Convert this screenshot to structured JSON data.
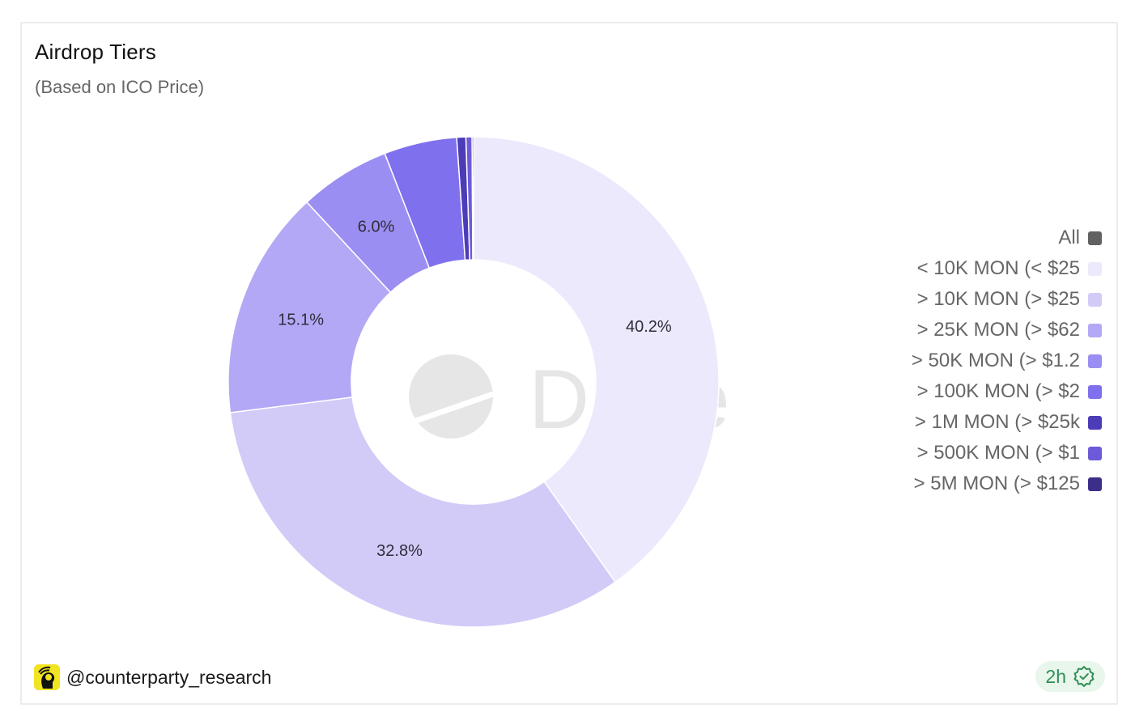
{
  "card": {
    "title": "Airdrop Tiers",
    "subtitle": "(Based on ICO Price)"
  },
  "chart_data": {
    "type": "pie",
    "donut": true,
    "categories": [
      "< 10K MON (< $25",
      "> 10K MON (> $25",
      "> 25K MON (> $62",
      "> 50K MON (> $1.2",
      "> 100K MON (> $2",
      "> 1M MON (> $25k",
      "> 500K MON (> $1",
      "> 5M MON (> $125"
    ],
    "values": [
      40.2,
      32.8,
      15.1,
      6.0,
      4.8,
      0.6,
      0.4,
      0.1
    ],
    "data_labels": [
      "40.2%",
      "32.8%",
      "15.1%",
      "6.0%",
      "",
      "",
      "",
      ""
    ],
    "colors": [
      "#ede9fc",
      "#d2cbf8",
      "#b3a8f6",
      "#9b8ef2",
      "#7f70ee",
      "#4d3cb8",
      "#6c5ad8",
      "#3c2f8a"
    ],
    "legend_placement": "right"
  },
  "watermark": {
    "text": "Dune"
  },
  "legend": {
    "items": [
      {
        "label": "All",
        "color": "#616161"
      },
      {
        "label": "< 10K MON (< $25",
        "color": "#ede9fc"
      },
      {
        "label": "> 10K MON (> $25",
        "color": "#d2cbf8"
      },
      {
        "label": "> 25K MON (> $62",
        "color": "#b3a8f6"
      },
      {
        "label": "> 50K MON (> $1.2",
        "color": "#9b8ef2"
      },
      {
        "label": "> 100K MON (> $2",
        "color": "#7f70ee"
      },
      {
        "label": "> 1M MON (> $25k",
        "color": "#4d3cb8"
      },
      {
        "label": "> 500K MON (> $1",
        "color": "#6c5ad8"
      },
      {
        "label": "> 5M MON (> $125",
        "color": "#3c2f8a"
      }
    ]
  },
  "footer": {
    "username": "@counterparty_research",
    "avatar_icon": "reader-avatar-icon",
    "freshness": "2h",
    "freshness_icon": "verified-badge-icon",
    "freshness_color": "#2f8f57"
  }
}
